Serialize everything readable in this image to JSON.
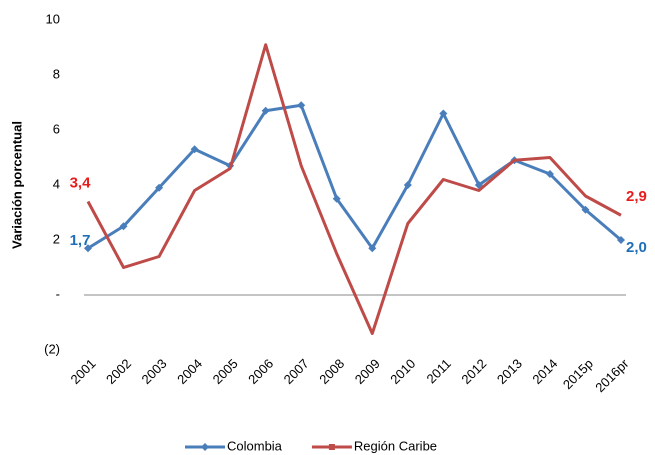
{
  "chart_data": {
    "type": "line",
    "y_label": "Variación porcentual",
    "categories": [
      "2001",
      "2002",
      "2003",
      "2004",
      "2005",
      "2006",
      "2007",
      "2008",
      "2009",
      "2010",
      "2011",
      "2012",
      "2013",
      "2014",
      "2015p",
      "2016pr"
    ],
    "series": [
      {
        "name": "Colombia",
        "color": "#4a7ebb",
        "marker": "diamond",
        "values": [
          1.7,
          2.5,
          3.9,
          5.3,
          4.7,
          6.7,
          6.9,
          3.5,
          1.7,
          4.0,
          6.6,
          4.0,
          4.9,
          4.4,
          3.1,
          2.0
        ],
        "value_labels": [
          "1,7",
          null,
          null,
          null,
          null,
          null,
          null,
          null,
          null,
          null,
          null,
          null,
          null,
          null,
          null,
          "2,0"
        ]
      },
      {
        "name": "Región Caribe",
        "color": "#be4b48",
        "marker": "square",
        "values": [
          3.4,
          1.0,
          1.4,
          3.8,
          4.6,
          9.1,
          4.7,
          1.5,
          -1.4,
          2.6,
          4.2,
          3.8,
          4.9,
          5.0,
          3.6,
          2.9
        ],
        "value_labels": [
          "3,4",
          null,
          null,
          null,
          null,
          null,
          null,
          null,
          null,
          null,
          null,
          null,
          null,
          null,
          null,
          "2,9"
        ]
      }
    ],
    "ylim": [
      -2,
      10
    ],
    "yticks": [
      {
        "value": -2,
        "label": "(2)"
      },
      {
        "value": 0,
        "label": "-"
      },
      2,
      4,
      6,
      8,
      10
    ],
    "legend": "bottom"
  }
}
